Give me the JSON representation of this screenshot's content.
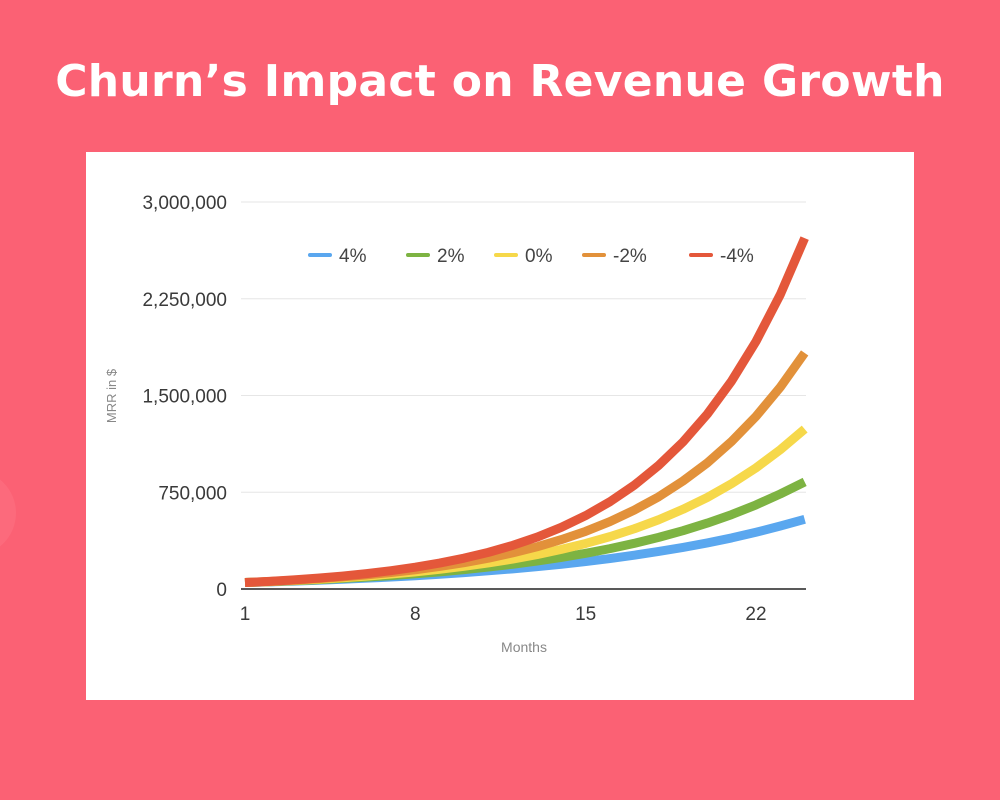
{
  "page": {
    "title": "Churn’s Impact on Revenue Growth",
    "background_color": "#fb6174"
  },
  "chart_data": {
    "type": "line",
    "title": "Churn’s Impact on Revenue Growth",
    "xlabel": "Months",
    "ylabel": "MRR in $",
    "x": [
      1,
      2,
      3,
      4,
      5,
      6,
      7,
      8,
      9,
      10,
      11,
      12,
      13,
      14,
      15,
      16,
      17,
      18,
      19,
      20,
      21,
      22,
      23,
      24
    ],
    "x_ticks": [
      1,
      8,
      15,
      22
    ],
    "y_ticks": [
      0,
      750000,
      1500000,
      2250000,
      3000000
    ],
    "y_tick_labels": [
      "0",
      "750,000",
      "1,500,000",
      "2,250,000",
      "3,000,000"
    ],
    "ylim": [
      0,
      3000000
    ],
    "xlim": [
      1,
      24
    ],
    "grid": true,
    "legend_position": "top-inside",
    "series": [
      {
        "name": "4%",
        "color": "#5aa7ef",
        "values": [
          50000,
          55000,
          61000,
          68000,
          76000,
          84000,
          93000,
          103000,
          114000,
          127000,
          141000,
          156000,
          173000,
          192000,
          213000,
          236000,
          262000,
          291000,
          322000,
          357000,
          396000,
          440000,
          488000,
          540000
        ]
      },
      {
        "name": "2%",
        "color": "#7db342",
        "values": [
          50000,
          56000,
          64000,
          72000,
          82000,
          92000,
          104000,
          118000,
          133000,
          150000,
          170000,
          192000,
          217000,
          245000,
          277000,
          313000,
          354000,
          400000,
          452000,
          511000,
          577000,
          652000,
          737000,
          830000
        ]
      },
      {
        "name": "0%",
        "color": "#f6d84a",
        "values": [
          50000,
          57000,
          66000,
          76000,
          87000,
          100000,
          116000,
          133000,
          153000,
          176000,
          202000,
          232000,
          267000,
          307000,
          353000,
          406000,
          467000,
          537000,
          618000,
          710000,
          817000,
          939000,
          1080000,
          1240000
        ]
      },
      {
        "name": "-2%",
        "color": "#e2913a",
        "values": [
          50000,
          58000,
          68000,
          80000,
          94000,
          109000,
          128000,
          149000,
          175000,
          204000,
          239000,
          280000,
          327000,
          383000,
          447000,
          523000,
          612000,
          715000,
          837000,
          978000,
          1144000,
          1338000,
          1565000,
          1830000
        ]
      },
      {
        "name": "-4%",
        "color": "#e4573a",
        "values": [
          50000,
          59000,
          71000,
          84000,
          100000,
          119000,
          142000,
          169000,
          201000,
          239000,
          284000,
          338000,
          402000,
          478000,
          569000,
          677000,
          805000,
          958000,
          1140000,
          1356000,
          1613000,
          1919000,
          2283000,
          2720000
        ]
      }
    ]
  }
}
